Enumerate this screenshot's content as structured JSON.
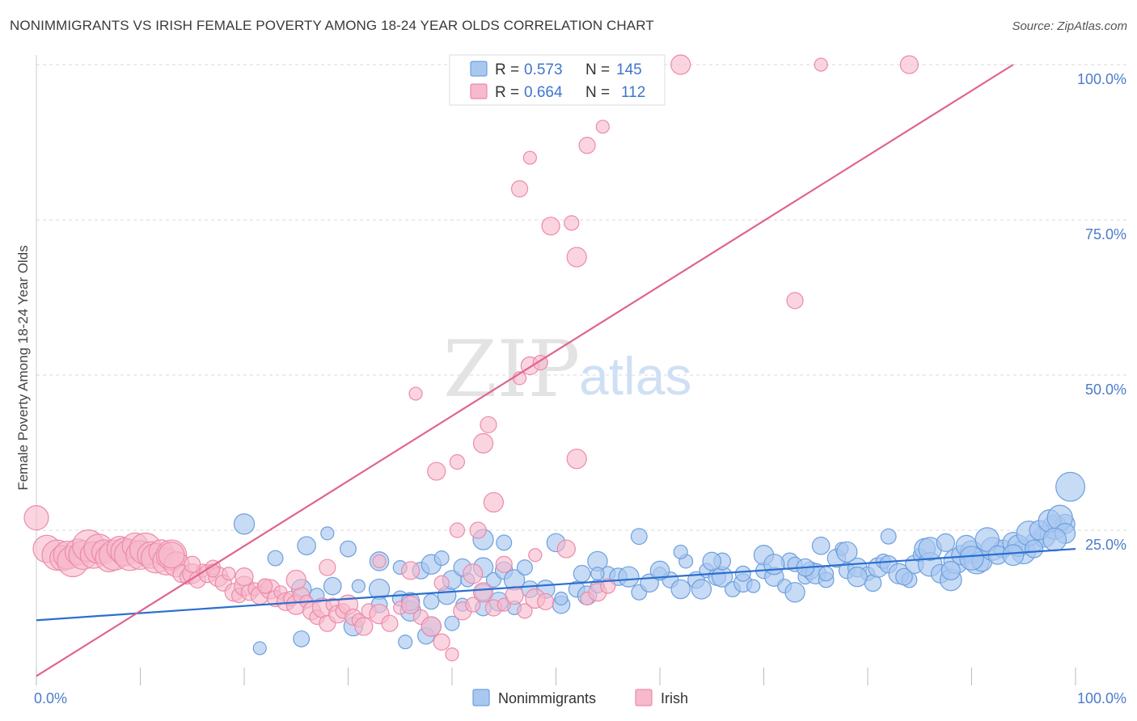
{
  "header": {
    "title": "NONIMMIGRANTS VS IRISH FEMALE POVERTY AMONG 18-24 YEAR OLDS CORRELATION CHART",
    "source": "Source: ZipAtlas.com"
  },
  "watermark": {
    "zip": "ZIP",
    "atlas": "atlas"
  },
  "legend": {
    "rows": [
      {
        "r_label": "R =",
        "r_value": "0.573",
        "n_label": "N =",
        "n_value": "145"
      },
      {
        "r_label": "R =",
        "r_value": "0.664",
        "n_label": "N =",
        "n_value": "112"
      }
    ]
  },
  "bottom_legend": [
    "Nonimmigrants",
    "Irish"
  ],
  "colors": {
    "blue_fill": "#a9c8f0",
    "blue_stroke": "#6d9fde",
    "blue_line": "#2a6fcf",
    "pink_fill": "#f7b9cc",
    "pink_stroke": "#ec8aaa",
    "pink_line": "#e0648f",
    "accent_text": "#3f76cc",
    "grid": "#d9d9d9"
  },
  "chart_data": {
    "type": "scatter",
    "title": "NONIMMIGRANTS VS IRISH FEMALE POVERTY AMONG 18-24 YEAR OLDS CORRELATION CHART",
    "xlabel": "",
    "ylabel": "Female Poverty Among 18-24 Year Olds",
    "x_tick_labels": [
      "0.0%",
      "100.0%"
    ],
    "y_tick_labels": [
      "25.0%",
      "50.0%",
      "75.0%",
      "100.0%"
    ],
    "xlim": [
      0,
      100
    ],
    "ylim": [
      0,
      100
    ],
    "grid": true,
    "legend_position": "top-center",
    "series": [
      {
        "name": "Nonimmigrants",
        "r": 0.573,
        "n": 145,
        "trend": {
          "x": [
            0,
            100
          ],
          "y": [
            10.5,
            22.0
          ]
        },
        "points": [
          [
            21.5,
            6.0
          ],
          [
            25.5,
            7.5
          ],
          [
            30.5,
            9.5
          ],
          [
            35.5,
            7.0
          ],
          [
            37.5,
            8.0
          ],
          [
            38,
            9.5
          ],
          [
            40,
            10.0
          ],
          [
            50.5,
            13.0
          ],
          [
            36,
            12.0
          ],
          [
            38,
            13.5
          ],
          [
            39.5,
            14.5
          ],
          [
            41,
            13.0
          ],
          [
            43,
            12.5
          ],
          [
            44.5,
            13.5
          ],
          [
            46,
            12.5
          ],
          [
            47.5,
            15.5
          ],
          [
            25.5,
            15.5
          ],
          [
            27,
            14.5
          ],
          [
            28.5,
            16.0
          ],
          [
            33,
            15.5
          ],
          [
            35,
            14.0
          ],
          [
            36,
            13.5
          ],
          [
            31,
            16.0
          ],
          [
            33,
            13.0
          ],
          [
            40,
            17.0
          ],
          [
            41.5,
            17.0
          ],
          [
            43,
            15.0
          ],
          [
            43,
            19.0
          ],
          [
            44,
            17.0
          ],
          [
            45,
            18.5
          ],
          [
            46,
            17.0
          ],
          [
            47,
            19.0
          ],
          [
            49,
            15.5
          ],
          [
            50.5,
            14.0
          ],
          [
            52,
            15.5
          ],
          [
            53,
            14.5
          ],
          [
            54,
            16.0
          ],
          [
            52.5,
            18.0
          ],
          [
            54,
            20.0
          ],
          [
            55,
            18.0
          ],
          [
            56,
            17.5
          ],
          [
            57,
            17.5
          ],
          [
            58,
            15.0
          ],
          [
            59,
            16.5
          ],
          [
            60,
            18.0
          ],
          [
            61,
            17.0
          ],
          [
            62,
            15.5
          ],
          [
            62.5,
            20.0
          ],
          [
            63.5,
            17.0
          ],
          [
            64,
            15.5
          ],
          [
            64.5,
            18.5
          ],
          [
            65.5,
            17.5
          ],
          [
            66,
            17.5
          ],
          [
            67,
            15.5
          ],
          [
            68,
            16.5
          ],
          [
            69,
            16.0
          ],
          [
            70,
            18.5
          ],
          [
            71,
            17.5
          ],
          [
            72,
            16.0
          ],
          [
            72.5,
            20.0
          ],
          [
            73,
            15.0
          ],
          [
            74,
            17.5
          ],
          [
            74.5,
            18.5
          ],
          [
            75,
            18.0
          ],
          [
            76,
            17.0
          ],
          [
            77,
            20.5
          ],
          [
            77.5,
            22.0
          ],
          [
            78,
            18.5
          ],
          [
            79,
            19.0
          ],
          [
            80,
            18.0
          ],
          [
            80.5,
            16.5
          ],
          [
            81,
            19.0
          ],
          [
            81.5,
            20.0
          ],
          [
            82,
            19.5
          ],
          [
            83,
            18.0
          ],
          [
            84,
            17.0
          ],
          [
            84.5,
            19.5
          ],
          [
            85,
            21.0
          ],
          [
            85.5,
            22.0
          ],
          [
            86,
            19.5
          ],
          [
            87,
            18.0
          ],
          [
            88,
            17.0
          ],
          [
            88.5,
            20.0
          ],
          [
            89,
            21.0
          ],
          [
            90,
            21.5
          ],
          [
            90.5,
            20.0
          ],
          [
            91,
            20.0
          ],
          [
            92,
            22.0
          ],
          [
            93,
            22.0
          ],
          [
            94,
            23.0
          ],
          [
            95,
            21.5
          ],
          [
            96,
            23.0
          ],
          [
            97,
            24.0
          ],
          [
            98,
            25.5
          ],
          [
            99,
            26.0
          ],
          [
            99.5,
            32.0
          ],
          [
            20,
            26.0
          ],
          [
            23,
            20.5
          ],
          [
            26,
            22.5
          ],
          [
            28,
            24.5
          ],
          [
            30,
            22.0
          ],
          [
            33,
            20.0
          ],
          [
            35,
            19.0
          ],
          [
            37,
            18.5
          ],
          [
            38,
            19.5
          ],
          [
            39,
            20.5
          ],
          [
            41,
            19.0
          ],
          [
            43,
            23.5
          ],
          [
            45,
            23.0
          ],
          [
            50,
            23.0
          ],
          [
            54,
            18.0
          ],
          [
            58,
            24.0
          ],
          [
            60,
            18.5
          ],
          [
            62,
            21.5
          ],
          [
            66,
            20.0
          ],
          [
            70,
            21.0
          ],
          [
            73,
            19.5
          ],
          [
            75.5,
            22.5
          ],
          [
            78,
            21.5
          ],
          [
            82,
            24.0
          ],
          [
            86,
            22.0
          ],
          [
            87.5,
            23.0
          ],
          [
            89.5,
            22.5
          ],
          [
            91.5,
            23.5
          ],
          [
            92.5,
            21.0
          ],
          [
            94.5,
            22.5
          ],
          [
            95.5,
            24.5
          ],
          [
            96.5,
            25.0
          ],
          [
            97.5,
            26.5
          ],
          [
            98.5,
            27.0
          ],
          [
            99,
            24.5
          ],
          [
            98,
            23.5
          ],
          [
            96,
            22.0
          ],
          [
            94,
            21.0
          ],
          [
            90,
            20.5
          ],
          [
            88,
            18.5
          ],
          [
            83.5,
            17.5
          ],
          [
            79,
            17.5
          ],
          [
            76,
            18.0
          ],
          [
            74,
            19.0
          ],
          [
            71,
            19.5
          ],
          [
            68,
            18.0
          ],
          [
            65,
            20.0
          ]
        ]
      },
      {
        "name": "Irish",
        "r": 0.664,
        "n": 112,
        "trend": {
          "x": [
            0,
            94
          ],
          "y": [
            1.5,
            100
          ]
        },
        "points": [
          [
            0,
            27.0
          ],
          [
            1,
            22.0
          ],
          [
            2,
            21.0
          ],
          [
            2.5,
            20.5
          ],
          [
            3,
            21.0
          ],
          [
            3.5,
            20.0
          ],
          [
            4,
            21.5
          ],
          [
            4.5,
            21.0
          ],
          [
            5,
            22.5
          ],
          [
            5.5,
            21.0
          ],
          [
            6,
            22.0
          ],
          [
            6.5,
            21.5
          ],
          [
            7,
            20.5
          ],
          [
            7.5,
            21.0
          ],
          [
            8,
            22.0
          ],
          [
            8.5,
            21.5
          ],
          [
            9,
            21.0
          ],
          [
            9.5,
            22.5
          ],
          [
            10,
            21.0
          ],
          [
            10.5,
            22.0
          ],
          [
            11,
            21.0
          ],
          [
            11.5,
            20.5
          ],
          [
            12,
            21.5
          ],
          [
            12.5,
            20.0
          ],
          [
            13,
            21.0
          ],
          [
            13.5,
            19.5
          ],
          [
            14,
            18.0
          ],
          [
            14.5,
            17.5
          ],
          [
            15,
            18.0
          ],
          [
            15.5,
            17.0
          ],
          [
            16,
            18.5
          ],
          [
            16.5,
            18.0
          ],
          [
            17,
            19.0
          ],
          [
            17.5,
            17.5
          ],
          [
            18,
            16.5
          ],
          [
            18.5,
            18.0
          ],
          [
            19,
            15.0
          ],
          [
            19.5,
            14.5
          ],
          [
            20,
            16.0
          ],
          [
            20.5,
            15.0
          ],
          [
            21,
            15.5
          ],
          [
            21.5,
            14.5
          ],
          [
            22,
            16.0
          ],
          [
            22.5,
            15.5
          ],
          [
            23,
            14.0
          ],
          [
            23.5,
            15.0
          ],
          [
            24,
            13.5
          ],
          [
            24.5,
            14.0
          ],
          [
            25,
            13.0
          ],
          [
            25.5,
            14.5
          ],
          [
            26,
            13.5
          ],
          [
            26.5,
            12.0
          ],
          [
            27,
            11.0
          ],
          [
            27.5,
            12.5
          ],
          [
            28,
            10.0
          ],
          [
            28.5,
            13.0
          ],
          [
            29,
            11.5
          ],
          [
            29.5,
            12.0
          ],
          [
            30,
            13.0
          ],
          [
            30.5,
            11.0
          ],
          [
            31,
            10.5
          ],
          [
            31.5,
            9.5
          ],
          [
            32,
            12.0
          ],
          [
            33,
            11.5
          ],
          [
            34,
            10.0
          ],
          [
            35,
            12.5
          ],
          [
            36,
            13.0
          ],
          [
            37,
            11.0
          ],
          [
            38,
            9.5
          ],
          [
            39,
            7.0
          ],
          [
            40,
            5.0
          ],
          [
            41,
            12.0
          ],
          [
            42,
            13.0
          ],
          [
            43,
            15.0
          ],
          [
            44,
            12.5
          ],
          [
            45,
            13.0
          ],
          [
            46,
            14.5
          ],
          [
            47,
            12.0
          ],
          [
            48,
            14.0
          ],
          [
            49,
            13.5
          ],
          [
            53,
            14.0
          ],
          [
            54,
            15.0
          ],
          [
            55,
            16.0
          ],
          [
            13,
            21.0
          ],
          [
            15,
            19.5
          ],
          [
            17,
            18.5
          ],
          [
            20,
            17.5
          ],
          [
            22,
            16.0
          ],
          [
            25,
            17.0
          ],
          [
            28,
            19.0
          ],
          [
            33,
            20.0
          ],
          [
            36,
            18.5
          ],
          [
            39,
            16.5
          ],
          [
            42,
            18.0
          ],
          [
            45,
            19.5
          ],
          [
            48,
            21.0
          ],
          [
            51,
            22.0
          ],
          [
            40.5,
            25.0
          ],
          [
            44,
            29.5
          ],
          [
            42.5,
            25.0
          ],
          [
            36.5,
            47.0
          ],
          [
            38.5,
            34.5
          ],
          [
            40.5,
            36.0
          ],
          [
            43,
            39.0
          ],
          [
            43.5,
            42.0
          ],
          [
            46.5,
            49.5
          ],
          [
            47.5,
            51.5
          ],
          [
            48.5,
            52.0
          ],
          [
            52,
            36.5
          ],
          [
            46.5,
            80.0
          ],
          [
            47.5,
            85.0
          ],
          [
            49.5,
            74.0
          ],
          [
            51.5,
            74.5
          ],
          [
            52,
            69.0
          ],
          [
            53,
            87.0
          ],
          [
            54.5,
            90.0
          ],
          [
            56.5,
            100.0
          ],
          [
            58.5,
            100.0
          ],
          [
            62,
            100.0
          ],
          [
            73,
            62.0
          ],
          [
            75.5,
            100.0
          ],
          [
            84,
            100.0
          ]
        ]
      }
    ]
  }
}
